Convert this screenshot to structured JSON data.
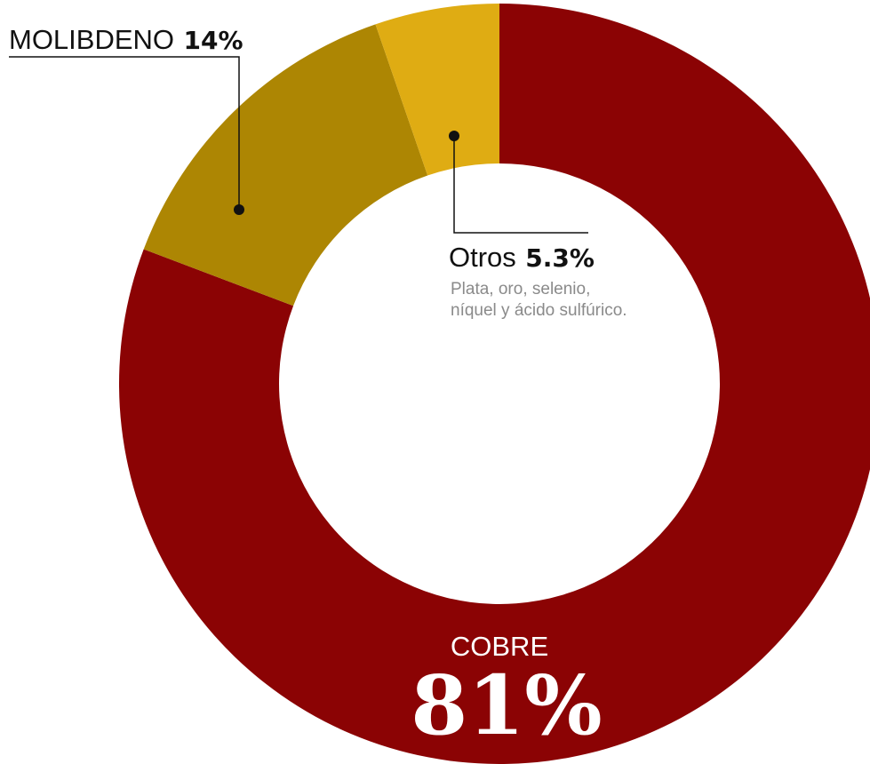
{
  "chart_data": {
    "type": "pie",
    "title": "",
    "slices": [
      {
        "name": "COBRE",
        "value_label": "81%",
        "value": 81,
        "color": "#8b0304"
      },
      {
        "name": "MOLIBDENO",
        "value_label": "14%",
        "value": 14,
        "color": "#ad8603"
      },
      {
        "name": "Otros",
        "value_label": "5.3%",
        "value": 5.3,
        "color": "#dfac13",
        "note_lines": [
          "Plata, oro, selenio,",
          "níquel y ácido sulfúrico."
        ]
      }
    ]
  }
}
